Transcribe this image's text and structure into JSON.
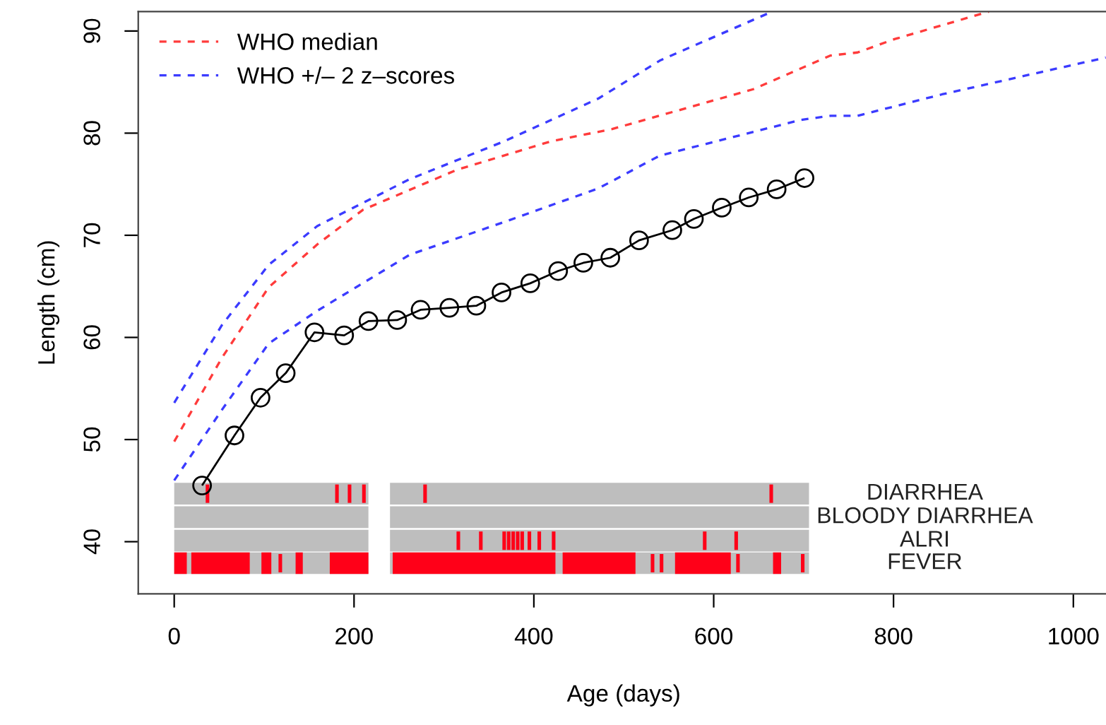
{
  "chart_data": {
    "type": "line",
    "xlabel": "Age (days)",
    "ylabel": "Length (cm)",
    "xlim": [
      -40,
      1040
    ],
    "ylim": [
      34.9,
      91.9
    ],
    "xticks": [
      0,
      200,
      400,
      600,
      800,
      1000
    ],
    "yticks": [
      40,
      50,
      60,
      70,
      80,
      90
    ],
    "grid": false,
    "legend": "top left",
    "series": [
      {
        "name": "WHO median",
        "color": "#ff3b3b",
        "line_style": "dashed",
        "marker": "none",
        "x": [
          0,
          53,
          105,
          159,
          210,
          314,
          419,
          487,
          644,
          730,
          760,
          801,
          906
        ],
        "values": [
          49.8,
          58,
          64.9,
          69.1,
          72.5,
          76.4,
          79.2,
          80.4,
          84.3,
          87.6,
          87.9,
          89.2,
          91.9
        ]
      },
      {
        "name": "WHO +/– 2 z–scores",
        "color": "#3b3bff",
        "line_style": "dashed",
        "marker": "none",
        "x": [
          0,
          53,
          105,
          159,
          262,
          367,
          472,
          540,
          665
        ],
        "values": [
          53.6,
          61.2,
          67.1,
          70.9,
          75.5,
          79.2,
          83.4,
          87.1,
          91.9
        ]
      },
      {
        "color": "#3b3bff",
        "line_style": "dashed",
        "marker": "none",
        "x": [
          0,
          53,
          105,
          159,
          262,
          367,
          472,
          540,
          697,
          730,
          760,
          854,
          1036
        ],
        "values": [
          46.0,
          52.9,
          59.4,
          62.6,
          68.1,
          71.3,
          74.6,
          77.8,
          81.3,
          81.7,
          81.7,
          83.8,
          87.4
        ]
      },
      {
        "color": "#000000",
        "line_style": "solid",
        "marker": "circle",
        "x": [
          31,
          67,
          96,
          124,
          156,
          189,
          216,
          248,
          274,
          306,
          336,
          364,
          396,
          427,
          455,
          485,
          517,
          554,
          578,
          609,
          639,
          670,
          701
        ],
        "values": [
          45.5,
          50.4,
          54.1,
          56.5,
          60.5,
          60.2,
          61.6,
          61.7,
          62.7,
          62.9,
          63.1,
          64.4,
          65.3,
          66.5,
          67.3,
          67.8,
          69.5,
          70.5,
          71.6,
          72.7,
          73.7,
          74.5,
          75.6
        ]
      },
      {
        "color": "#bebebe",
        "line_style": "solid",
        "marker": "none",
        "x": [
          0,
          216,
          null,
          240,
          706
        ],
        "values": [
          44.7,
          44.7,
          null,
          44.7,
          44.7
        ]
      },
      {
        "color": "#bebebe",
        "line_style": "solid",
        "marker": "none",
        "x": [
          0,
          216,
          null,
          240,
          706
        ],
        "values": [
          42.4,
          42.4,
          null,
          42.4,
          42.4
        ]
      },
      {
        "color": "#bebebe",
        "line_style": "solid",
        "marker": "none",
        "x": [
          0,
          216,
          null,
          240,
          706
        ],
        "values": [
          40.1,
          40.1,
          null,
          40.1,
          40.1
        ]
      },
      {
        "color": "#bebebe",
        "line_style": "solid",
        "marker": "none",
        "x": [
          0,
          216,
          null,
          240,
          706
        ],
        "values": [
          37.9,
          37.9,
          null,
          37.9,
          37.9
        ]
      },
      {
        "type": "bar",
        "color": "#ff0018",
        "x": [
          37,
          118,
          181,
          195,
          211,
          279,
          316,
          341,
          367,
          372,
          377,
          382,
          387,
          395,
          406,
          422,
          532,
          542,
          590,
          625,
          627,
          664,
          699
        ],
        "base": [
          43.8,
          37.0,
          43.8,
          43.8,
          43.8,
          43.8,
          39.2,
          39.2,
          39.2,
          39.2,
          39.2,
          39.2,
          39.2,
          39.2,
          39.2,
          39.2,
          37.0,
          37.0,
          39.2,
          39.2,
          37.0,
          43.8,
          37.0
        ],
        "values": [
          1.8,
          1.8,
          1.8,
          1.8,
          1.8,
          1.8,
          1.8,
          1.8,
          1.8,
          1.8,
          1.8,
          1.8,
          1.8,
          1.8,
          1.8,
          1.8,
          1.8,
          1.8,
          1.8,
          1.8,
          1.8,
          1.8,
          1.8
        ]
      },
      {
        "color": "#ff0018",
        "line_style": "solid",
        "marker": "none",
        "x": [
          0,
          14,
          null,
          19,
          84,
          null,
          97,
          108,
          null,
          135,
          143,
          null,
          173,
          216,
          null,
          243,
          424,
          null,
          432,
          513,
          null,
          557,
          619,
          null,
          666,
          675
        ],
        "values": [
          37.9,
          37.9,
          null,
          37.9,
          37.9,
          null,
          37.9,
          37.9,
          null,
          37.9,
          37.9,
          null,
          37.9,
          37.9,
          null,
          37.9,
          37.9,
          null,
          37.9,
          37.9,
          null,
          37.9,
          37.9,
          null,
          37.9,
          37.9
        ]
      }
    ],
    "annotations": [
      "DIARRHEA",
      "BLOODY DIARRHEA",
      "ALRI",
      "FEVER"
    ]
  }
}
